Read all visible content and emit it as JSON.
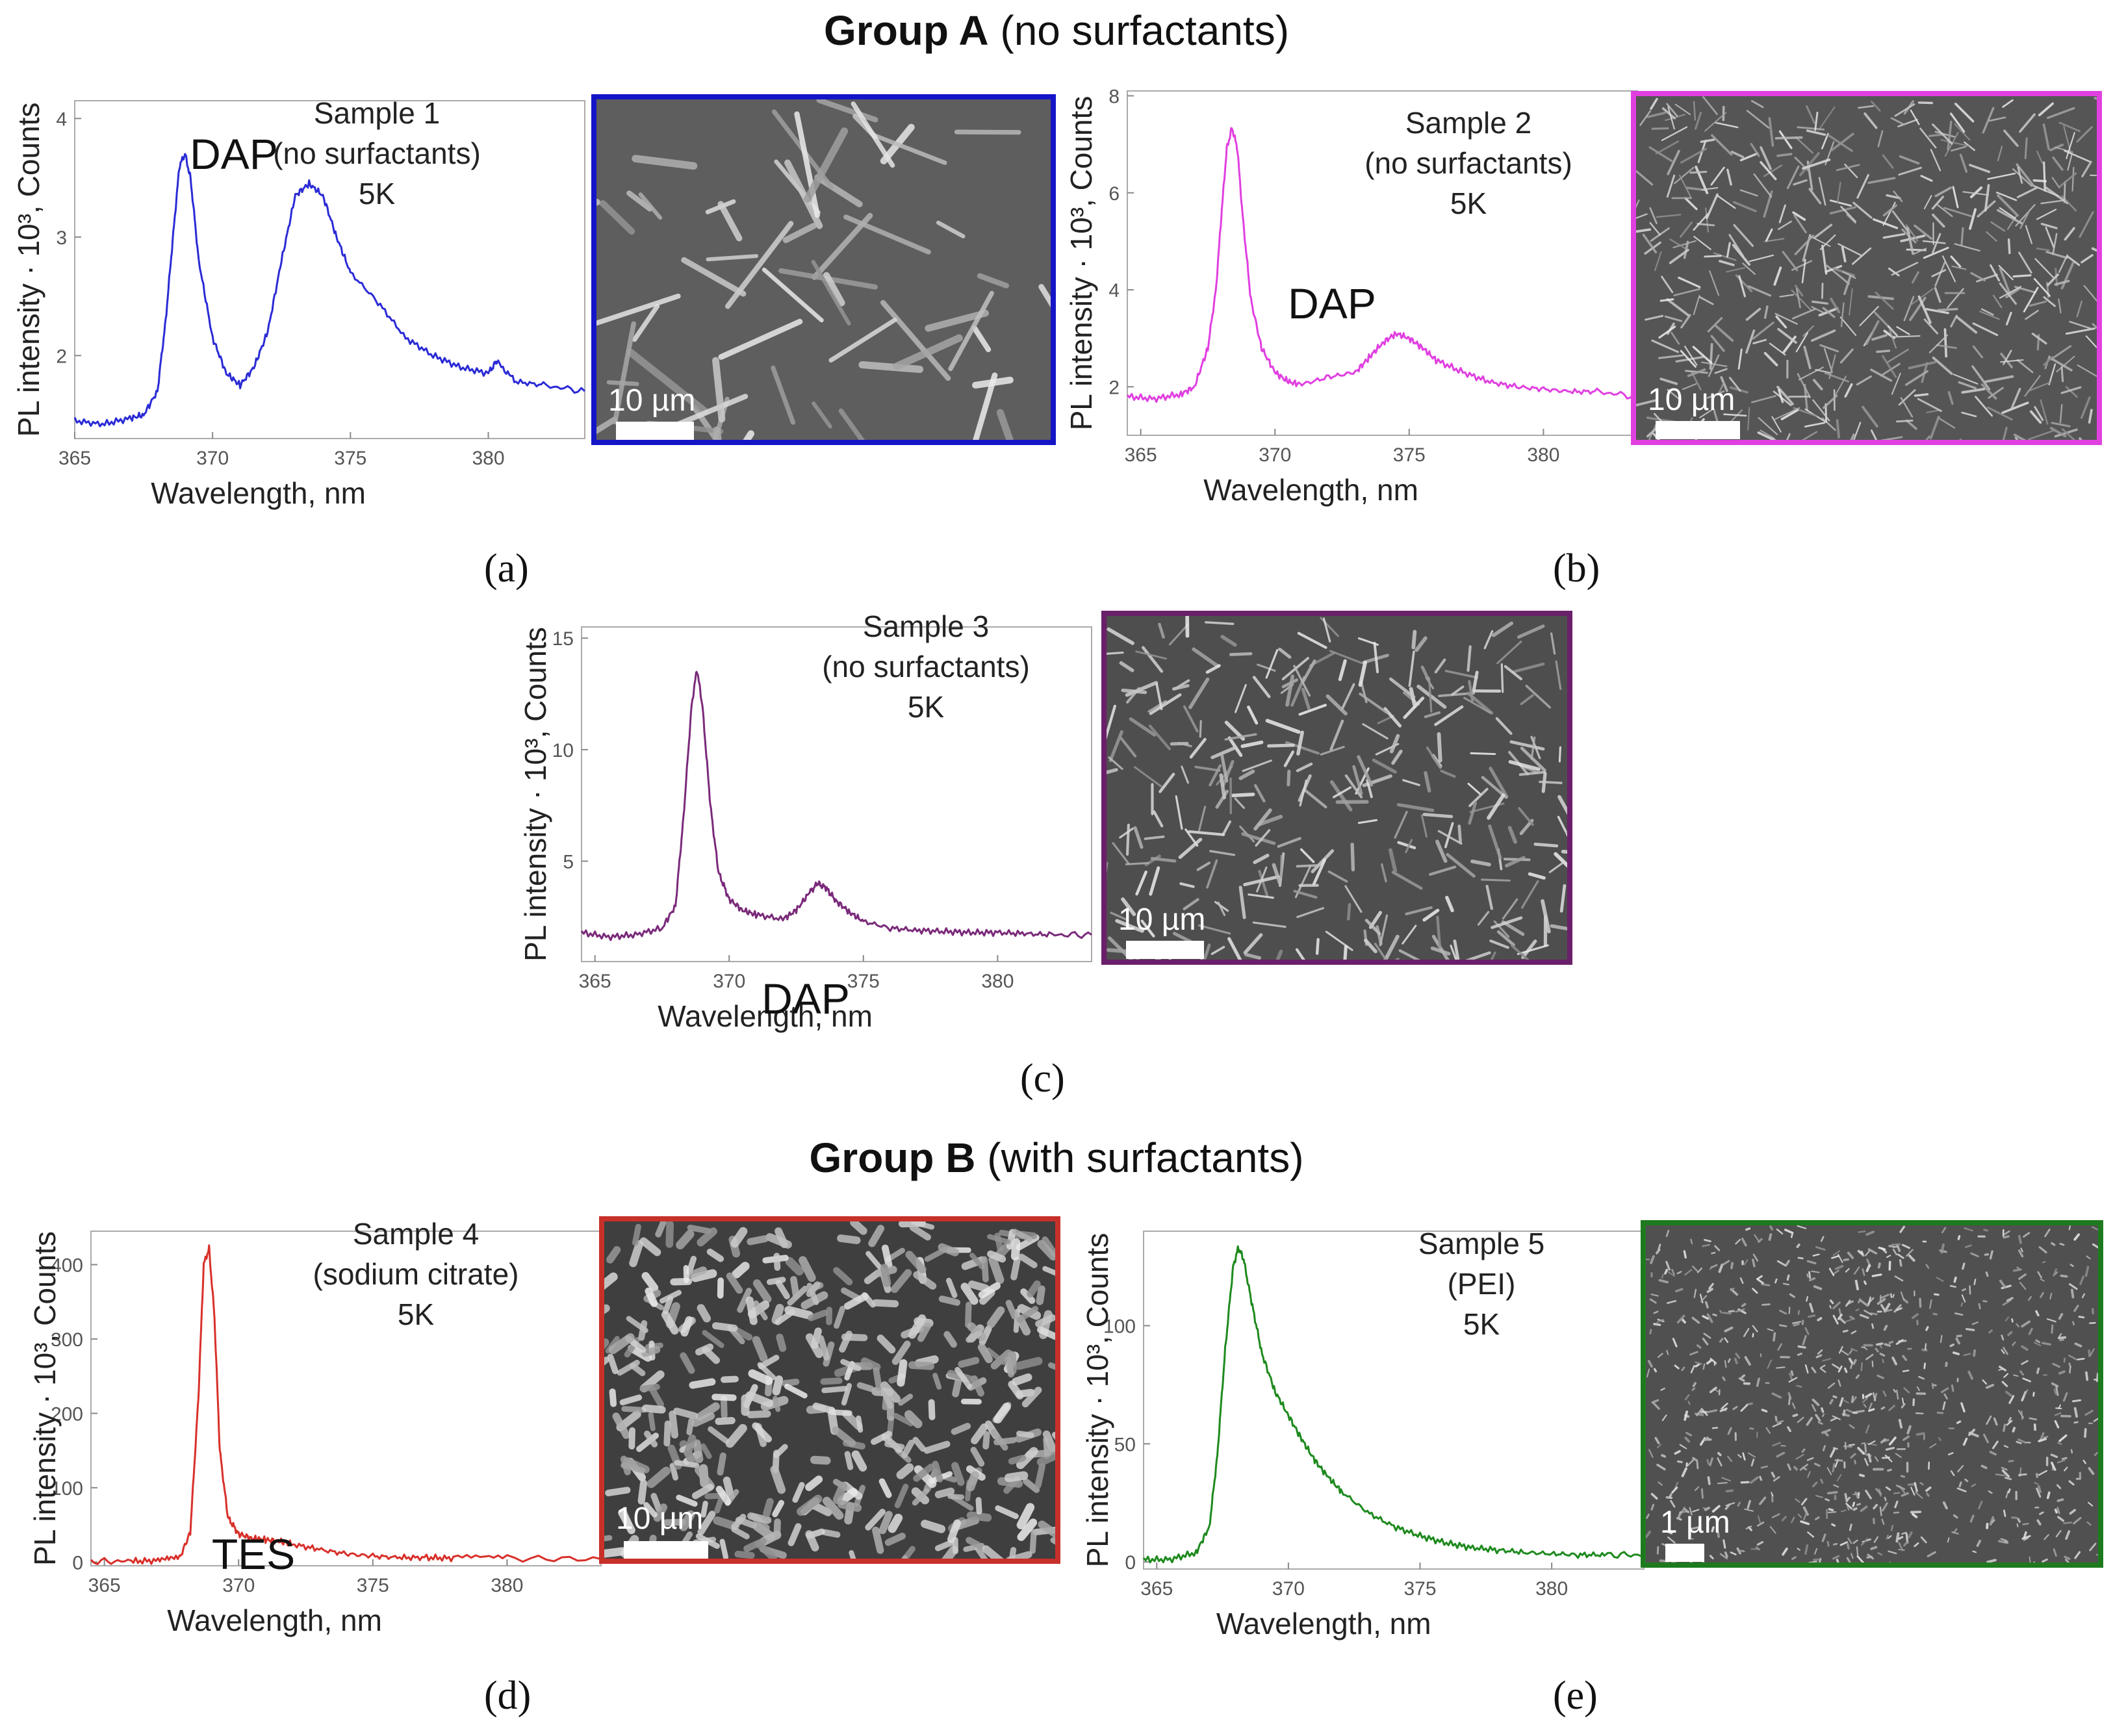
{
  "groups": {
    "a": {
      "title_bold": "Group A",
      "title_rest": " (no surfactants)"
    },
    "b": {
      "title_bold": "Group B",
      "title_rest": " (with surfactants)"
    }
  },
  "panel_letters": {
    "a": "(a)",
    "b": "(b)",
    "c": "(c)",
    "d": "(d)",
    "e": "(e)"
  },
  "scalebars": {
    "a": "10 µm",
    "b": "10 µm",
    "c": "10 µm",
    "d": "10 µm",
    "e": "1 µm"
  },
  "frame_colors": {
    "a": "#1515c8",
    "b": "#e040e0",
    "c": "#6a1f6a",
    "d": "#c8302a",
    "e": "#1e7a1e"
  },
  "chart_data": [
    {
      "id": "a",
      "type": "line",
      "xlabel": "Wavelength, nm",
      "ylabel": "PL intensity · 10³, Counts",
      "xlim": [
        365,
        383.5
      ],
      "ylim": [
        1.3,
        4.15
      ],
      "xticks": [
        "365",
        "370",
        "375",
        "380"
      ],
      "yticks": [
        "2",
        "3",
        "4"
      ],
      "annotation": [
        "Sample 1",
        "(no surfactants)",
        "5K"
      ],
      "peak_label": "DAP",
      "color": "#2b2bd6",
      "series": [
        {
          "name": "Sample 1",
          "x": [
            365,
            366,
            367,
            367.5,
            368,
            368.3,
            368.6,
            368.8,
            369,
            369.2,
            369.5,
            370,
            370.5,
            371,
            371.5,
            372,
            372.5,
            373,
            373.5,
            374,
            374.5,
            375,
            376,
            377,
            378,
            379,
            380,
            380.3,
            381,
            382,
            383.5
          ],
          "y": [
            1.45,
            1.42,
            1.47,
            1.5,
            1.7,
            2.3,
            3.1,
            3.6,
            3.7,
            3.5,
            2.8,
            2.15,
            1.85,
            1.75,
            1.9,
            2.2,
            2.8,
            3.35,
            3.45,
            3.35,
            3.0,
            2.7,
            2.45,
            2.15,
            2.0,
            1.9,
            1.85,
            1.95,
            1.78,
            1.75,
            1.7
          ]
        }
      ]
    },
    {
      "id": "b",
      "type": "line",
      "xlabel": "Wavelength, nm",
      "ylabel": "PL intensity · 10³, Counts",
      "xlim": [
        364.5,
        383.5
      ],
      "ylim": [
        1.0,
        8.1
      ],
      "xticks": [
        "365",
        "370",
        "375",
        "380"
      ],
      "yticks": [
        "2",
        "4",
        "6",
        "8"
      ],
      "annotation": [
        "Sample 2",
        "(no surfactants)",
        "5K"
      ],
      "peak_label": "DAP",
      "color": "#e040e0",
      "series": [
        {
          "name": "Sample 2",
          "x": [
            364.5,
            365.5,
            366.5,
            367,
            367.5,
            367.8,
            368,
            368.2,
            368.4,
            368.6,
            368.8,
            369.1,
            369.5,
            370,
            370.5,
            371,
            372,
            373,
            373.5,
            374,
            374.5,
            375,
            375.5,
            376,
            377,
            378,
            379,
            380,
            381,
            382,
            383.5
          ],
          "y": [
            1.8,
            1.75,
            1.85,
            2.0,
            2.8,
            4.0,
            5.5,
            6.9,
            7.35,
            6.9,
            5.5,
            3.8,
            2.8,
            2.3,
            2.1,
            2.05,
            2.2,
            2.3,
            2.6,
            2.9,
            3.1,
            3.0,
            2.8,
            2.55,
            2.3,
            2.1,
            2.0,
            1.95,
            1.9,
            1.9,
            1.8
          ]
        }
      ]
    },
    {
      "id": "c",
      "type": "line",
      "xlabel": "Wavelength, nm",
      "ylabel": "PL intensity · 10³, Counts",
      "xlim": [
        364.5,
        383.5
      ],
      "ylim": [
        0.5,
        15.5
      ],
      "xticks": [
        "365",
        "370",
        "375",
        "380"
      ],
      "yticks": [
        "5",
        "10",
        "15"
      ],
      "annotation": [
        "Sample 3",
        "(no surfactants)",
        "5K"
      ],
      "peak_label": "DAP",
      "color": "#7a2a7a",
      "series": [
        {
          "name": "Sample 3",
          "x": [
            364.5,
            365.5,
            366.5,
            367.5,
            368,
            368.3,
            368.6,
            368.8,
            369,
            369.3,
            369.6,
            370,
            370.5,
            371,
            372,
            372.5,
            373,
            373.3,
            373.6,
            374,
            374.5,
            375,
            376,
            377,
            378,
            379,
            380,
            381,
            382,
            383.5
          ],
          "y": [
            1.8,
            1.6,
            1.7,
            2.0,
            3.0,
            7.0,
            12.0,
            13.6,
            12.0,
            7.5,
            4.5,
            3.3,
            2.8,
            2.6,
            2.4,
            2.8,
            3.6,
            4.0,
            3.8,
            3.2,
            2.7,
            2.3,
            2.0,
            1.9,
            1.85,
            1.8,
            1.8,
            1.75,
            1.7,
            1.7
          ]
        }
      ]
    },
    {
      "id": "d",
      "type": "line",
      "xlabel": "Wavelength, nm",
      "ylabel": "PL intensity · 10³, Counts",
      "xlim": [
        364.5,
        383.5
      ],
      "ylim": [
        -5,
        445
      ],
      "xticks": [
        "365",
        "370",
        "375",
        "380"
      ],
      "yticks": [
        "0",
        "100",
        "200",
        "300",
        "400"
      ],
      "annotation": [
        "Sample 4",
        "(sodium citrate)",
        "5K"
      ],
      "peak_label": "TES",
      "color": "#d8302a",
      "series": [
        {
          "name": "Sample 4",
          "x": [
            364.5,
            366,
            367,
            367.8,
            368.2,
            368.5,
            368.7,
            368.9,
            369.1,
            369.3,
            369.6,
            370,
            370.5,
            371,
            371.5,
            372,
            373,
            374,
            375,
            376,
            377,
            378,
            380,
            383.5
          ],
          "y": [
            1,
            1,
            2,
            5,
            40,
            220,
            400,
            422,
            330,
            150,
            60,
            38,
            32,
            30,
            28,
            24,
            17,
            11,
            8,
            6,
            6,
            5,
            5,
            4
          ]
        }
      ]
    },
    {
      "id": "e",
      "type": "line",
      "xlabel": "Wavelength, nm",
      "ylabel": "PL intensity · 10³, Counts",
      "xlim": [
        364.5,
        383.5
      ],
      "ylim": [
        -3,
        140
      ],
      "xticks": [
        "365",
        "370",
        "375",
        "380"
      ],
      "yticks": [
        "0",
        "50",
        "100"
      ],
      "annotation": [
        "Sample 5",
        "(PEI)",
        "5K"
      ],
      "peak_label": "",
      "color": "#1e8a1e",
      "series": [
        {
          "name": "Sample 5",
          "x": [
            364.5,
            365.5,
            366.5,
            367,
            367.3,
            367.6,
            367.9,
            368.1,
            368.3,
            368.6,
            369,
            369.5,
            370,
            370.5,
            371,
            371.5,
            372,
            373,
            374,
            375,
            376,
            377,
            378,
            379,
            380,
            381,
            382,
            383.5
          ],
          "y": [
            1,
            1,
            4,
            15,
            45,
            90,
            125,
            133,
            128,
            110,
            88,
            72,
            62,
            52,
            43,
            36,
            30,
            21,
            15,
            11,
            8,
            6,
            5,
            4,
            3.5,
            3,
            3,
            3
          ]
        }
      ]
    }
  ]
}
